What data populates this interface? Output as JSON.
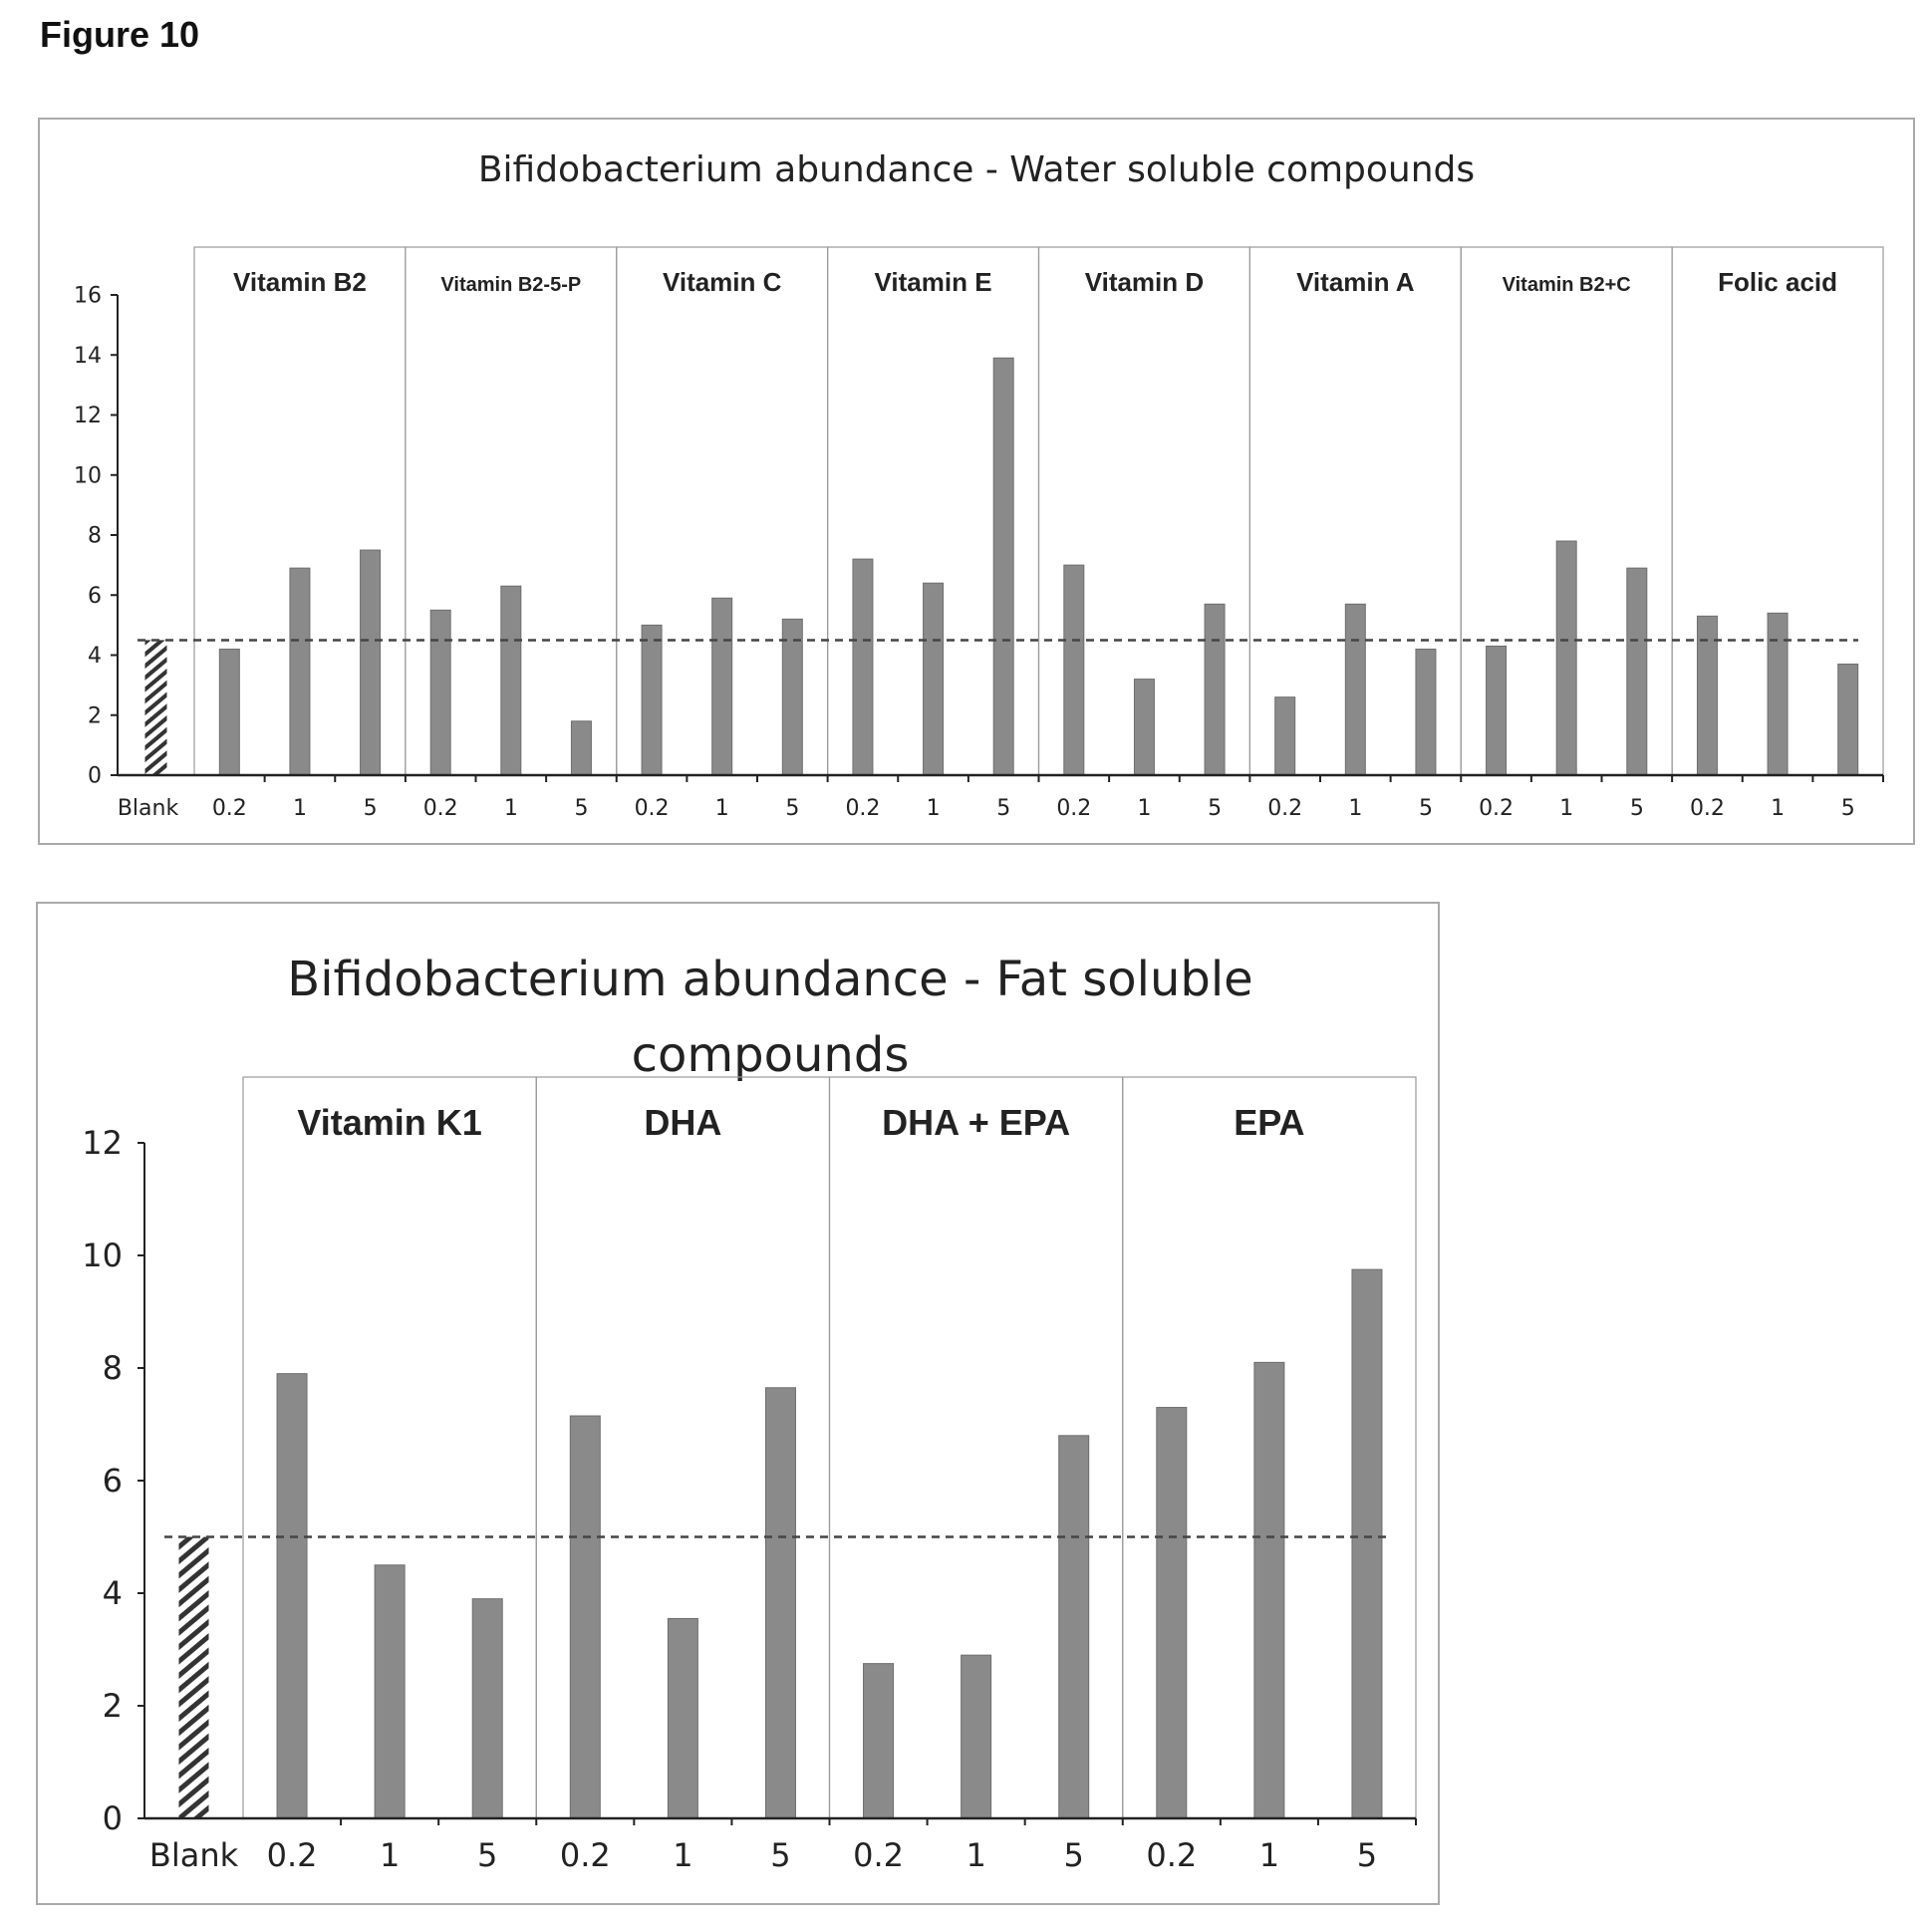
{
  "figure_label": "Figure 10",
  "colors": {
    "bar": "#8a8a8a",
    "bar_edge": "#6e6e6e",
    "blank_hatch": "#333333",
    "baseline": "#444444",
    "axis": "#222222",
    "panel_border": "#aaaaaa"
  },
  "chart_data": [
    {
      "type": "bar",
      "title": "Bifidobacterium abundance - Water soluble compounds",
      "xlabel": "",
      "ylabel": "",
      "ylim": [
        0,
        16
      ],
      "yticks": [
        "0",
        "2",
        "4",
        "6",
        "8",
        "10",
        "12",
        "14",
        "16"
      ],
      "blank": {
        "label": "Blank",
        "value": 4.5
      },
      "baseline": 4.5,
      "grid": false,
      "legend": "none",
      "groups": [
        {
          "name": "Vitamin B2",
          "categories": [
            "0.2",
            "1",
            "5"
          ],
          "values": [
            4.2,
            6.9,
            7.5
          ]
        },
        {
          "name": "Vitamin B2-5-P",
          "categories": [
            "0.2",
            "1",
            "5"
          ],
          "values": [
            5.5,
            6.3,
            1.8
          ]
        },
        {
          "name": "Vitamin C",
          "categories": [
            "0.2",
            "1",
            "5"
          ],
          "values": [
            5.0,
            5.9,
            5.2
          ]
        },
        {
          "name": "Vitamin E",
          "categories": [
            "0.2",
            "1",
            "5"
          ],
          "values": [
            7.2,
            6.4,
            13.9
          ]
        },
        {
          "name": "Vitamin D",
          "categories": [
            "0.2",
            "1",
            "5"
          ],
          "values": [
            7.0,
            3.2,
            5.7
          ]
        },
        {
          "name": "Vitamin A",
          "categories": [
            "0.2",
            "1",
            "5"
          ],
          "values": [
            2.6,
            5.7,
            4.2
          ]
        },
        {
          "name": "Vitamin B2+C",
          "categories": [
            "0.2",
            "1",
            "5"
          ],
          "values": [
            4.3,
            7.8,
            6.9
          ]
        },
        {
          "name": "Folic acid",
          "categories": [
            "0.2",
            "1",
            "5"
          ],
          "values": [
            5.3,
            5.4,
            3.7
          ]
        }
      ]
    },
    {
      "type": "bar",
      "title": "Bifidobacterium abundance - Fat soluble compounds",
      "title_lines": [
        "Bifidobacterium abundance - Fat soluble",
        "compounds"
      ],
      "xlabel": "",
      "ylabel": "",
      "ylim": [
        0,
        12
      ],
      "yticks": [
        "0",
        "2",
        "4",
        "6",
        "8",
        "10",
        "12"
      ],
      "blank": {
        "label": "Blank",
        "value": 5.0
      },
      "baseline": 5.0,
      "grid": false,
      "legend": "none",
      "groups": [
        {
          "name": "Vitamin K1",
          "categories": [
            "0.2",
            "1",
            "5"
          ],
          "values": [
            7.9,
            4.5,
            3.9
          ]
        },
        {
          "name": "DHA",
          "categories": [
            "0.2",
            "1",
            "5"
          ],
          "values": [
            7.15,
            3.55,
            7.65
          ]
        },
        {
          "name": "DHA + EPA",
          "categories": [
            "0.2",
            "1",
            "5"
          ],
          "values": [
            2.75,
            2.9,
            6.8
          ]
        },
        {
          "name": "EPA",
          "categories": [
            "0.2",
            "1",
            "5"
          ],
          "values": [
            7.3,
            8.1,
            9.75
          ]
        }
      ]
    }
  ]
}
